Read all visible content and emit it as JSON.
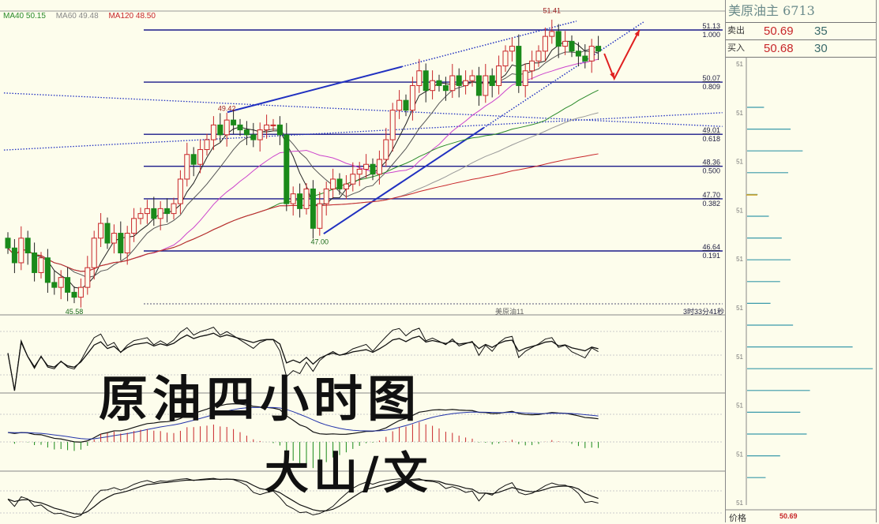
{
  "legend": [
    {
      "label": "MA40 50.15",
      "color": "#2a8a2a"
    },
    {
      "label": "MA60 49.48",
      "color": "#888888"
    },
    {
      "label": "MA120 48.50",
      "color": "#c8262a"
    }
  ],
  "overlay": {
    "title": "原油四小时图",
    "author": "大山/文"
  },
  "footer": {
    "symbol": "美原油11",
    "countdown": "3时33分41秒"
  },
  "right_panel": {
    "title": "美原油主  6713",
    "sell": {
      "label": "卖出",
      "price": "50.69",
      "volume": "35"
    },
    "buy": {
      "label": "买入",
      "price": "50.68",
      "volume": "30"
    },
    "axis_label": "51",
    "price_label": "价格",
    "price_value": "50.69",
    "depth_volumes": [
      21,
      54,
      69,
      51,
      13,
      27,
      43,
      54,
      41,
      29,
      57,
      131,
      156,
      78,
      66,
      74,
      41,
      23
    ]
  },
  "chart_data": {
    "type": "candlestick",
    "title": "",
    "closes": [
      46.7,
      46.4,
      46.9,
      46.6,
      46.2,
      46.5,
      46.0,
      45.9,
      46.1,
      45.8,
      45.7,
      45.9,
      46.3,
      46.9,
      47.2,
      46.8,
      47.0,
      46.6,
      47.0,
      47.3,
      47.4,
      47.5,
      47.3,
      47.5,
      47.4,
      47.6,
      48.1,
      48.6,
      48.4,
      48.7,
      48.9,
      49.2,
      49.0,
      49.3,
      49.2,
      49.1,
      49.0,
      48.9,
      49.1,
      49.2,
      49.2,
      49.0,
      47.6,
      47.8,
      47.5,
      47.9,
      47.1,
      47.6,
      47.9,
      48.1,
      47.9,
      48.0,
      48.2,
      48.3,
      48.4,
      48.2,
      48.5,
      48.9,
      49.5,
      49.7,
      49.5,
      50.0,
      50.3,
      49.9,
      50.1,
      50.0,
      49.9,
      50.2,
      50.0,
      50.1,
      50.2,
      49.8,
      50.2,
      50.0,
      50.4,
      50.7,
      50.8,
      50.0,
      50.3,
      50.5,
      50.7,
      51.0,
      51.1,
      50.8,
      50.9,
      50.7,
      50.6,
      50.5,
      50.8,
      50.7
    ],
    "price_annotations": [
      {
        "index": 10,
        "price": 45.58,
        "label": "45.58"
      },
      {
        "index": 33,
        "price": 49.42,
        "label": "49.42"
      },
      {
        "index": 47,
        "price": 47.0,
        "label": "47.00"
      },
      {
        "index": 82,
        "price": 51.41,
        "label": "51.41"
      }
    ],
    "fib_levels": [
      {
        "price": 51.13,
        "price_label": "51.13",
        "ratio": "1.000"
      },
      {
        "price": 50.07,
        "price_label": "50.07",
        "ratio": "0.809"
      },
      {
        "price": 49.01,
        "price_label": "49.01",
        "ratio": "0.618"
      },
      {
        "price": 48.36,
        "price_label": "48.36",
        "ratio": "0.500"
      },
      {
        "price": 47.7,
        "price_label": "47.70",
        "ratio": "0.382"
      },
      {
        "price": 46.64,
        "price_label": "46.64",
        "ratio": "0.191"
      }
    ],
    "trendlines": [
      {
        "from": [
          33.1,
          49.46
        ],
        "to": [
          85.7,
          51.31
        ],
        "style": "solid-then-dotted"
      },
      {
        "from": [
          47.6,
          46.99
        ],
        "to": [
          95.8,
          51.29
        ],
        "style": "solid-then-dotted"
      },
      {
        "from": [
          -0.6,
          49.85
        ],
        "to": [
          107.7,
          49.17
        ],
        "style": "dotted"
      },
      {
        "from": [
          -0.6,
          48.69
        ],
        "to": [
          107.7,
          49.45
        ],
        "style": "dotted"
      }
    ],
    "forecast_arrow": [
      [
        89.9,
        50.65
      ],
      [
        91.4,
        50.14
      ],
      [
        95.2,
        51.13
      ]
    ],
    "moving_averages": [
      {
        "period": 5,
        "color": "#222222"
      },
      {
        "period": 10,
        "color": "#555555"
      },
      {
        "period": 20,
        "color": "#cc44cc"
      },
      {
        "period": 40,
        "color": "#2a8a2a"
      },
      {
        "period": 60,
        "color": "#999999"
      },
      {
        "period": 120,
        "color": "#c8262a"
      }
    ],
    "colors": {
      "up": "#c8262a",
      "down": "#1a8a1a",
      "fib": "#1a1a8a",
      "trend": "#2030c0",
      "arrow": "#e02020"
    }
  }
}
